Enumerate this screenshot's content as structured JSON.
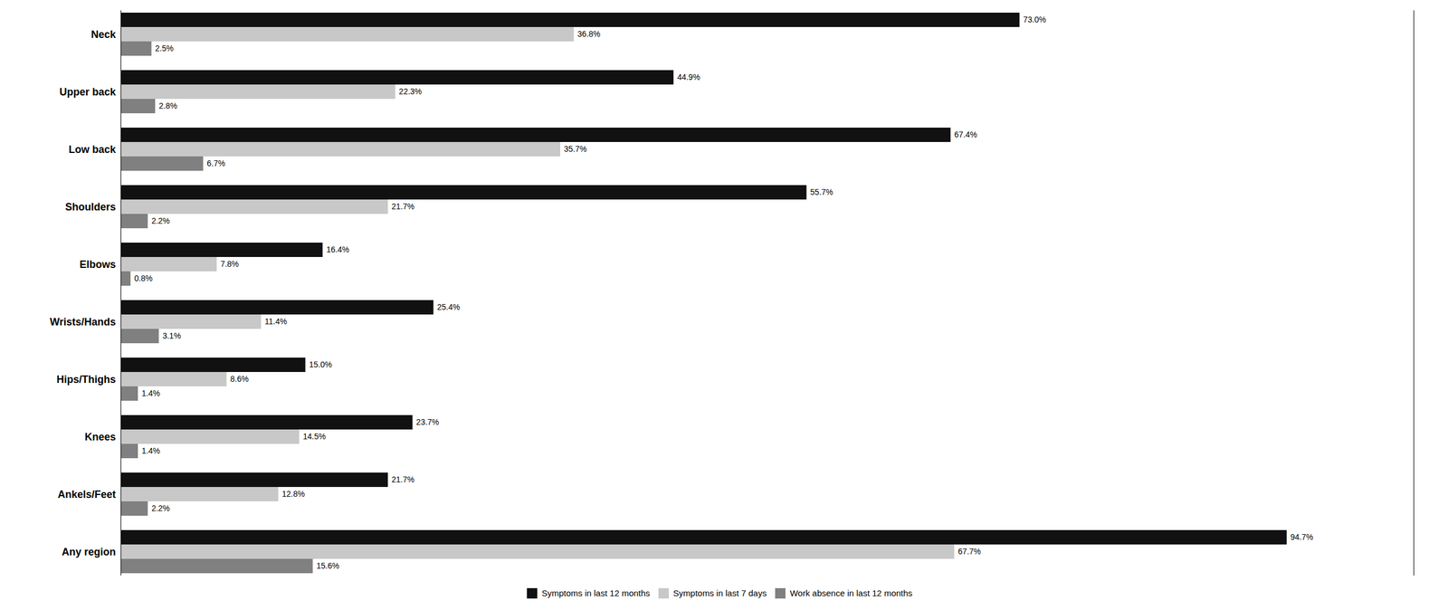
{
  "chart_data": {
    "type": "bar",
    "orientation": "horizontal",
    "categories": [
      "Any region",
      "Ankels/Feet",
      "Knees",
      "Hips/Thighs",
      "Wrists/Hands",
      "Elbows",
      "Shoulders",
      "Low back",
      "Upper back",
      "Neck"
    ],
    "series": [
      {
        "name": "Symptoms in last 12 months",
        "color": "#111111",
        "values": [
          94.7,
          21.7,
          23.7,
          15.0,
          25.4,
          16.4,
          55.7,
          67.4,
          44.9,
          73.0
        ],
        "value_labels": [
          "94.7%",
          "21.7%",
          "23.7%",
          "15.0%",
          "25.4%",
          "16.4%",
          "55.7%",
          "67.4%",
          "44.9%",
          "73.0%"
        ]
      },
      {
        "name": "Symptoms in last 7 days",
        "color": "#c8c8c8",
        "values": [
          67.7,
          12.8,
          14.5,
          8.6,
          11.4,
          7.8,
          21.7,
          35.7,
          22.3,
          36.8
        ],
        "value_labels": [
          "67.7%",
          "12.8%",
          "14.5%",
          "8.6%",
          "11.4%",
          "7.8%",
          "21.7%",
          "35.7%",
          "22.3%",
          "36.8%"
        ]
      },
      {
        "name": "Work absence in last 12 months",
        "color": "#808080",
        "values": [
          15.6,
          2.2,
          1.4,
          1.4,
          3.1,
          0.8,
          2.2,
          6.7,
          2.8,
          2.5
        ],
        "value_labels": [
          "15.6%",
          "2.2%",
          "1.4%",
          "1.4%",
          "3.1%",
          "0.8%",
          "2.2%",
          "6.7%",
          "2.8%",
          "2.5%"
        ]
      }
    ],
    "xlim": [
      0,
      105
    ],
    "tick_labels": "y",
    "data_labels": true,
    "legend": "bottom"
  }
}
